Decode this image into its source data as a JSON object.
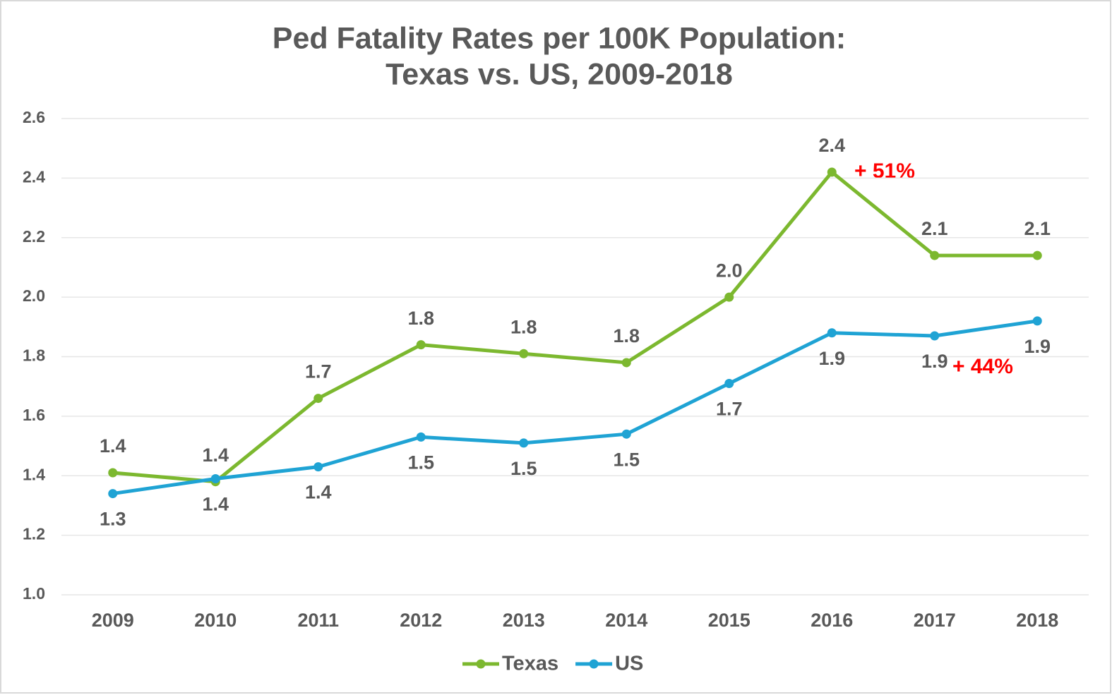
{
  "chart_data": {
    "type": "line",
    "title": "Ped Fatality Rates per 100K Population:",
    "subtitle": "Texas vs. US, 2009-2018",
    "categories": [
      "2009",
      "2010",
      "2011",
      "2012",
      "2013",
      "2014",
      "2015",
      "2016",
      "2017",
      "2018"
    ],
    "series": [
      {
        "name": "Texas",
        "color": "#7cb82f",
        "label_side": "above",
        "values": [
          1.41,
          1.38,
          1.66,
          1.84,
          1.81,
          1.78,
          2.0,
          2.42,
          2.14,
          2.14
        ],
        "value_labels": [
          "1.4",
          "1.4",
          "1.7",
          "1.8",
          "1.8",
          "1.8",
          "2.0",
          "2.4",
          "2.1",
          "2.1"
        ]
      },
      {
        "name": "US",
        "color": "#1fa3d4",
        "label_side": "below",
        "values": [
          1.34,
          1.39,
          1.43,
          1.53,
          1.51,
          1.54,
          1.71,
          1.88,
          1.87,
          1.92
        ],
        "value_labels": [
          "1.3",
          "1.4",
          "1.4",
          "1.5",
          "1.5",
          "1.5",
          "1.7",
          "1.9",
          "1.9",
          "1.9"
        ]
      }
    ],
    "annotations": [
      "+ 51%",
      "+ 44%"
    ],
    "ylim": [
      1.0,
      2.6
    ],
    "yticks": [
      {
        "value": 1.0,
        "label": "1.0"
      },
      {
        "value": 1.2,
        "label": "1.2"
      },
      {
        "value": 1.4,
        "label": "1.4"
      },
      {
        "value": 1.6,
        "label": "1.6"
      },
      {
        "value": 1.8,
        "label": "1.8"
      },
      {
        "value": 2.0,
        "label": "2.0"
      },
      {
        "value": 2.2,
        "label": "2.2"
      },
      {
        "value": 2.4,
        "label": "2.4"
      },
      {
        "value": 2.6,
        "label": "2.6"
      }
    ],
    "grid": true,
    "legend": "bottom"
  }
}
